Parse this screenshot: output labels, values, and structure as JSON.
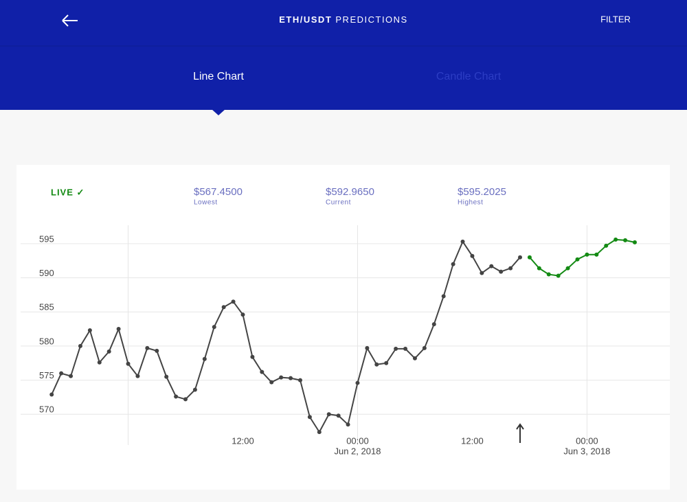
{
  "header": {
    "title_bold": "ETH/USDT",
    "title_rest": "PREDICTIONS",
    "filter": "FILTER"
  },
  "tabs": [
    "Line Chart",
    "Candle Chart"
  ],
  "status": "LIVE ✓",
  "stats": [
    {
      "value": "$567.4500",
      "label": "Lowest"
    },
    {
      "value": "$592.9650",
      "label": "Current"
    },
    {
      "value": "$595.2025",
      "label": "Highest"
    }
  ],
  "chart_data": {
    "type": "line",
    "x_start": "2018-05-31 16:00",
    "x_step_hours": 1,
    "xlim": [
      "2018-05-31 12:45",
      "2018-06-03 08:40"
    ],
    "xticks": [
      {
        "value": "2018-06-01 12:00",
        "label": "12:00"
      },
      {
        "value": "2018-06-02 00:00",
        "label": "00:00",
        "date_label": "Jun 2, 2018"
      },
      {
        "value": "2018-06-02 12:00",
        "label": "12:00"
      },
      {
        "value": "2018-06-03 00:00",
        "label": "00:00",
        "date_label": "Jun 3, 2018"
      }
    ],
    "xgrid": [
      "2018-06-01 00:00",
      "2018-06-02 00:00",
      "2018-06-03 00:00"
    ],
    "ylim": [
      565.5,
      597.7
    ],
    "yticks": [
      570,
      575,
      580,
      585,
      590,
      595
    ],
    "grid": true,
    "series": [
      {
        "color": "#444444",
        "x_start": "2018-05-31 16:00",
        "values": [
          572.9,
          576.0,
          575.6,
          580.0,
          582.3,
          577.6,
          579.2,
          582.5,
          577.4,
          575.6,
          579.7,
          579.3,
          575.5,
          572.6,
          572.2,
          573.6,
          578.1,
          582.8,
          585.7,
          586.5,
          584.6,
          578.4,
          576.2,
          574.7,
          575.4,
          575.3,
          575.0,
          569.6,
          567.4,
          570.0,
          569.8,
          568.5,
          574.6,
          579.7,
          577.3,
          577.5,
          579.6,
          579.6,
          578.2,
          579.7,
          583.2,
          587.3,
          592.0,
          595.3,
          593.2,
          590.7,
          591.7,
          590.9,
          591.4,
          593.0
        ]
      },
      {
        "color": "#138a13",
        "x_start": "2018-06-02 18:00",
        "values": [
          593.0,
          591.4,
          590.5,
          590.3,
          591.4,
          592.7,
          593.4,
          593.4,
          594.7,
          595.6,
          595.5,
          595.2
        ]
      }
    ]
  }
}
